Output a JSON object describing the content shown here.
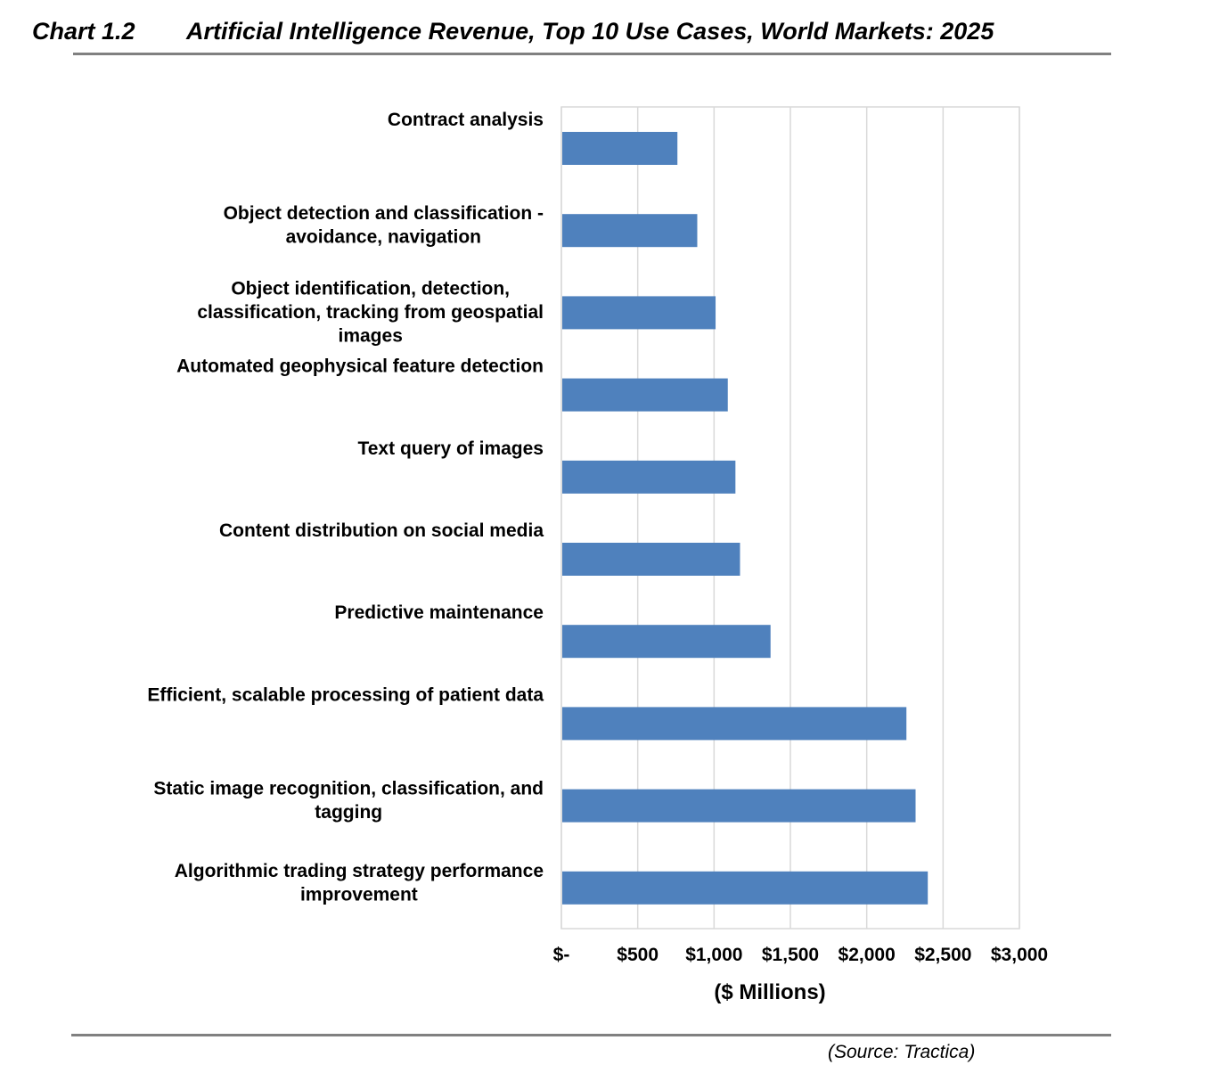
{
  "header": {
    "chart_number": "Chart 1.2",
    "title": "Artificial Intelligence Revenue, Top 10 Use Cases, World Markets: 2025"
  },
  "source": "(Source: Tractica)",
  "colors": {
    "bar": "#4F81BD",
    "grid": "#D9D9D9",
    "rule": "#808080"
  },
  "chart_data": {
    "type": "bar",
    "orientation": "horizontal",
    "title": "Artificial Intelligence Revenue, Top 10 Use Cases, World Markets: 2025",
    "xlabel": "($ Millions)",
    "ylabel": "",
    "xlim": [
      0,
      3000
    ],
    "grid": true,
    "x_ticks": [
      0,
      500,
      1000,
      1500,
      2000,
      2500,
      3000
    ],
    "x_tick_labels": [
      "$-",
      "$500",
      "$1,000",
      "$1,500",
      "$2,000",
      "$2,500",
      "$3,000"
    ],
    "categories": [
      "Contract analysis",
      "Object detection and classification - avoidance, navigation",
      "Object identification, detection, classification, tracking from geospatial images",
      "Automated geophysical feature detection",
      "Text query of images",
      "Content distribution on social media",
      "Predictive maintenance",
      "Efficient, scalable processing of patient data",
      "Static image recognition, classification, and tagging",
      "Algorithmic trading strategy performance improvement"
    ],
    "category_label_lines": [
      [
        "Contract analysis"
      ],
      [
        "Object detection and classification -",
        "avoidance, navigation"
      ],
      [
        "Object identification, detection,",
        "classification, tracking from geospatial",
        "images"
      ],
      [
        "Automated geophysical feature detection"
      ],
      [
        "Text query of images"
      ],
      [
        "Content distribution on social media"
      ],
      [
        "Predictive maintenance"
      ],
      [
        "Efficient, scalable processing of patient data"
      ],
      [
        "Static image recognition, classification, and",
        "tagging"
      ],
      [
        "Algorithmic trading strategy performance",
        "improvement"
      ]
    ],
    "values": [
      760,
      890,
      1010,
      1090,
      1140,
      1170,
      1370,
      2260,
      2320,
      2400
    ]
  }
}
